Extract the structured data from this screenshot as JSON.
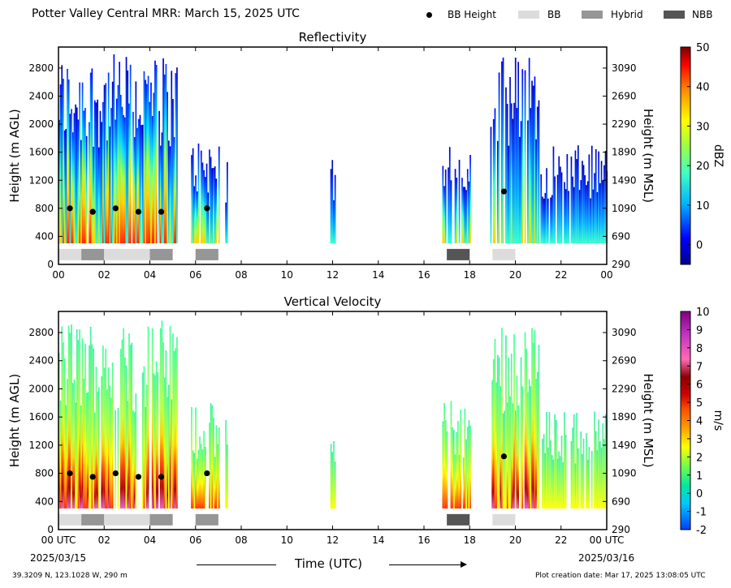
{
  "header": {
    "title": "Potter Valley Central MRR:  March 15, 2025 UTC"
  },
  "legend": [
    {
      "label": "BB Height",
      "marker": "dot",
      "color": "#000000"
    },
    {
      "label": "BB",
      "marker": "swatch",
      "color": "#dcdcdc"
    },
    {
      "label": "Hybrid",
      "marker": "swatch",
      "color": "#969696"
    },
    {
      "label": "NBB",
      "marker": "swatch",
      "color": "#555555"
    }
  ],
  "footer": {
    "location": "39.3209 N, 123.1028 W, 290 m",
    "creation": "Plot creation date: Mar 17, 2025 13:08:05 UTC",
    "xlabel": "Time (UTC)",
    "start_date": "2025/03/15",
    "end_date": "2025/03/16"
  },
  "colors": {
    "bb": "#dcdcdc",
    "hybrid": "#969696",
    "nbb": "#555555",
    "dot": "#000000"
  },
  "chart_data": [
    {
      "type": "heatmap",
      "title": "Reflectivity",
      "ylabel": "Height (m AGL)",
      "ylabel_right": "Height (m MSL)",
      "colorbar_label": "dBZ",
      "colorbar_ticks": [
        "50",
        "40",
        "30",
        "20",
        "10",
        "0"
      ],
      "colorbar_range": [
        -5,
        50
      ],
      "x_ticks": [
        "00",
        "02",
        "04",
        "06",
        "08",
        "10",
        "12",
        "14",
        "16",
        "18",
        "20",
        "22",
        "00"
      ],
      "y_ticks": [
        "0",
        "400",
        "800",
        "1200",
        "1600",
        "2000",
        "2400",
        "2800"
      ],
      "y_ticks_right": [
        "290",
        "690",
        "1090",
        "1490",
        "1890",
        "2290",
        "2690",
        "3090"
      ],
      "xlim": [
        0,
        24
      ],
      "ylim": [
        0,
        3100
      ],
      "precip_periods": [
        {
          "start": 0.0,
          "end": 5.2,
          "top": 3000
        },
        {
          "start": 5.8,
          "end": 7.0,
          "top": 1800
        },
        {
          "start": 7.3,
          "end": 7.4,
          "top": 1600
        },
        {
          "start": 11.9,
          "end": 12.1,
          "top": 1500
        },
        {
          "start": 16.8,
          "end": 18.0,
          "top": 1850
        },
        {
          "start": 18.9,
          "end": 21.0,
          "top": 3000
        },
        {
          "start": 21.1,
          "end": 24.0,
          "top": 1700
        }
      ],
      "bb_heights": [
        {
          "t": 0.5,
          "h": 800
        },
        {
          "t": 1.5,
          "h": 750
        },
        {
          "t": 2.5,
          "h": 800
        },
        {
          "t": 3.5,
          "h": 750
        },
        {
          "t": 4.5,
          "h": 750
        },
        {
          "t": 6.5,
          "h": 800
        },
        {
          "t": 19.5,
          "h": 1040
        }
      ],
      "bb_types": [
        {
          "start": 0.0,
          "end": 1.0,
          "type": "BB"
        },
        {
          "start": 1.0,
          "end": 2.0,
          "type": "Hybrid"
        },
        {
          "start": 2.0,
          "end": 4.0,
          "type": "BB"
        },
        {
          "start": 4.0,
          "end": 5.0,
          "type": "Hybrid"
        },
        {
          "start": 6.0,
          "end": 7.0,
          "type": "Hybrid"
        },
        {
          "start": 17.0,
          "end": 18.0,
          "type": "NBB"
        },
        {
          "start": 19.0,
          "end": 20.0,
          "type": "BB"
        }
      ]
    },
    {
      "type": "heatmap",
      "title": "Vertical Velocity",
      "ylabel": "Height (m AGL)",
      "ylabel_right": "Height (m MSL)",
      "colorbar_label": "m/s",
      "colorbar_ticks": [
        "10",
        "9",
        "8",
        "7",
        "6",
        "5",
        "4",
        "3",
        "2",
        "1",
        "0",
        "-1",
        "-2"
      ],
      "colorbar_range": [
        -2,
        10
      ],
      "x_ticks": [
        "00 UTC",
        "02",
        "04",
        "06",
        "08",
        "10",
        "12",
        "14",
        "16",
        "18",
        "20",
        "22",
        "00 UTC"
      ],
      "y_ticks": [
        "0",
        "400",
        "800",
        "1200",
        "1600",
        "2000",
        "2400",
        "2800"
      ],
      "y_ticks_right": [
        "290",
        "690",
        "1090",
        "1490",
        "1890",
        "2290",
        "2690",
        "3090"
      ],
      "xlim": [
        0,
        24
      ],
      "ylim": [
        0,
        3100
      ],
      "precip_periods": [
        {
          "start": 0.0,
          "end": 5.2,
          "top": 3000
        },
        {
          "start": 5.8,
          "end": 7.0,
          "top": 1800
        },
        {
          "start": 7.3,
          "end": 7.4,
          "top": 1600
        },
        {
          "start": 11.9,
          "end": 12.1,
          "top": 1500
        },
        {
          "start": 16.8,
          "end": 18.0,
          "top": 1850
        },
        {
          "start": 18.9,
          "end": 21.0,
          "top": 3000
        },
        {
          "start": 21.1,
          "end": 24.0,
          "top": 1700
        }
      ],
      "bb_heights": [
        {
          "t": 0.5,
          "h": 800
        },
        {
          "t": 1.5,
          "h": 750
        },
        {
          "t": 2.5,
          "h": 800
        },
        {
          "t": 3.5,
          "h": 750
        },
        {
          "t": 4.5,
          "h": 750
        },
        {
          "t": 6.5,
          "h": 800
        },
        {
          "t": 19.5,
          "h": 1040
        }
      ],
      "bb_types": [
        {
          "start": 0.0,
          "end": 1.0,
          "type": "BB"
        },
        {
          "start": 1.0,
          "end": 2.0,
          "type": "Hybrid"
        },
        {
          "start": 2.0,
          "end": 4.0,
          "type": "BB"
        },
        {
          "start": 4.0,
          "end": 5.0,
          "type": "Hybrid"
        },
        {
          "start": 6.0,
          "end": 7.0,
          "type": "Hybrid"
        },
        {
          "start": 17.0,
          "end": 18.0,
          "type": "NBB"
        },
        {
          "start": 19.0,
          "end": 20.0,
          "type": "BB"
        }
      ]
    }
  ]
}
